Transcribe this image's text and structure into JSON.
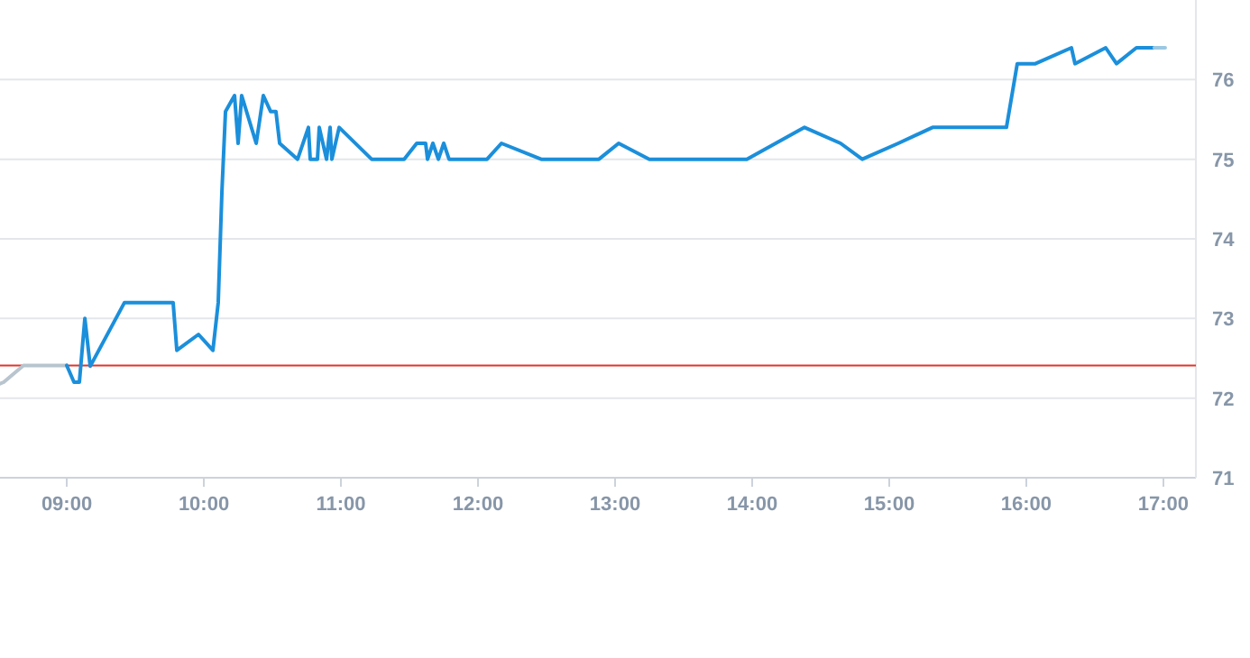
{
  "chart_data": {
    "type": "line",
    "xlim": [
      8.513,
      17.237
    ],
    "ylim": [
      71,
      77
    ],
    "xticks": [
      {
        "value": 9,
        "label": "09:00"
      },
      {
        "value": 10,
        "label": "10:00"
      },
      {
        "value": 11,
        "label": "11:00"
      },
      {
        "value": 12,
        "label": "12:00"
      },
      {
        "value": 13,
        "label": "13:00"
      },
      {
        "value": 14,
        "label": "14:00"
      },
      {
        "value": 15,
        "label": "15:00"
      },
      {
        "value": 16,
        "label": "16:00"
      },
      {
        "value": 17,
        "label": "17:00"
      }
    ],
    "yticks": [
      71,
      72,
      73,
      74,
      75,
      76
    ],
    "grid": "y",
    "ref_lines": [
      {
        "axis": "y",
        "value": 72.41,
        "color": "#e0342c"
      }
    ],
    "series": [
      {
        "color": "#b8c4ce",
        "x": [
          8.513,
          8.54,
          8.684,
          9.0
        ],
        "values": [
          72.18,
          72.2,
          72.41,
          72.41
        ]
      },
      {
        "color": "#1b8fdb",
        "x": [
          9.0,
          9.053,
          9.092,
          9.132,
          9.171,
          9.421,
          9.776,
          9.803,
          9.961,
          10.066,
          10.105,
          10.132,
          10.158,
          10.224,
          10.25,
          10.276,
          10.382,
          10.434,
          10.487,
          10.526,
          10.553,
          10.684,
          10.763,
          10.776,
          10.829,
          10.842,
          10.895,
          10.921,
          10.934,
          10.987,
          11.224,
          11.461,
          11.553,
          11.618,
          11.632,
          11.671,
          11.711,
          11.75,
          11.789,
          12.066,
          12.171,
          12.461,
          12.882,
          13.026,
          13.25,
          13.961,
          14.382,
          14.645,
          14.803,
          15.066,
          15.316,
          15.855,
          15.934,
          16.066,
          16.329,
          16.355,
          16.579,
          16.658,
          16.803,
          16.934
        ],
        "values": [
          72.41,
          72.2,
          72.2,
          73.0,
          72.4,
          73.2,
          73.2,
          72.6,
          72.8,
          72.6,
          73.2,
          74.6,
          75.6,
          75.8,
          75.2,
          75.8,
          75.2,
          75.8,
          75.6,
          75.6,
          75.2,
          75.0,
          75.4,
          75.0,
          75.0,
          75.4,
          75.0,
          75.4,
          75.0,
          75.4,
          75.0,
          75.0,
          75.2,
          75.2,
          75.0,
          75.2,
          75.0,
          75.2,
          75.0,
          75.0,
          75.2,
          75.0,
          75.0,
          75.2,
          75.0,
          75.0,
          75.4,
          75.2,
          75.0,
          75.2,
          75.4,
          75.4,
          76.2,
          76.2,
          76.4,
          76.2,
          76.4,
          76.2,
          76.4,
          76.4
        ]
      },
      {
        "color": "#9cc7e2",
        "x": [
          16.934,
          17.013
        ],
        "values": [
          76.4,
          76.4
        ]
      }
    ]
  }
}
